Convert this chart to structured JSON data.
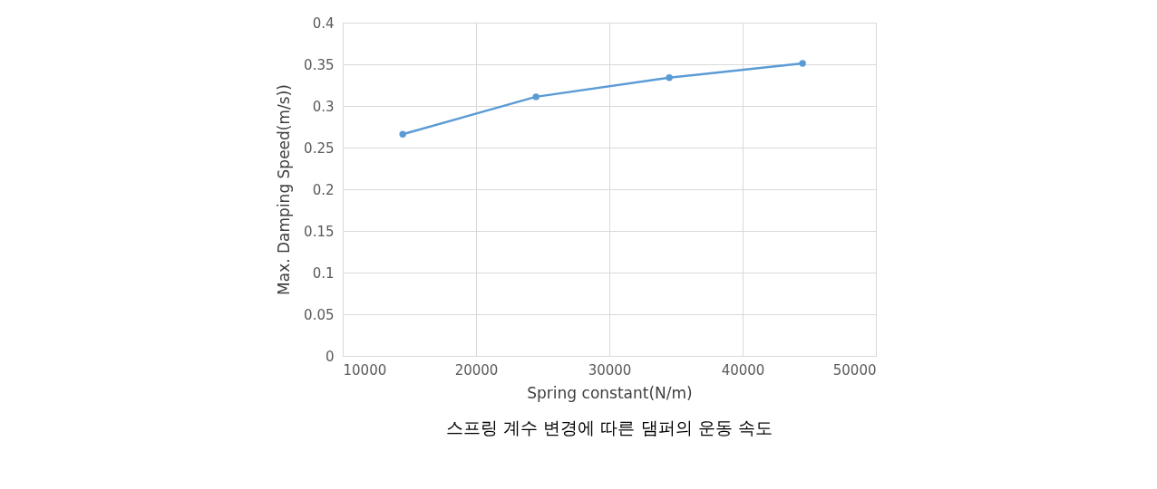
{
  "chart_data": {
    "type": "line",
    "xlabel": "Spring constant(N/m)",
    "ylabel": "Max. Damping Speed(m/s))",
    "x": [
      14500,
      24500,
      34500,
      44500
    ],
    "series": [
      {
        "color": "#5b9bd5",
        "values": [
          0.266,
          0.311,
          0.334,
          0.351
        ]
      }
    ],
    "xlim": [
      10000,
      50000
    ],
    "xticks": [
      10000,
      20000,
      30000,
      40000,
      50000
    ],
    "ylim": [
      0,
      0.4
    ],
    "yticks": [
      0,
      0.05,
      0.1,
      0.15,
      0.2,
      0.25,
      0.3,
      0.35,
      0.4
    ],
    "grid": true,
    "marker": "circle",
    "line_style": "solid",
    "annotations": [
      "스프링 계수 변경에 따른 댐퍼의 운동 속도"
    ]
  }
}
